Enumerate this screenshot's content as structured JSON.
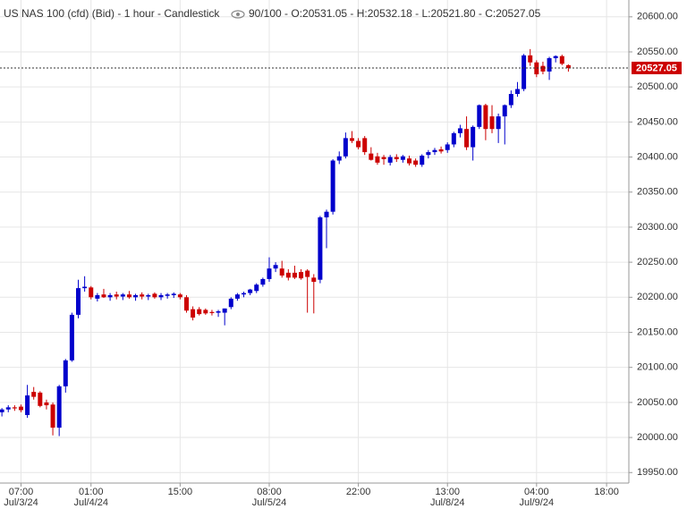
{
  "chart_data": {
    "type": "candlestick",
    "title": "US NAS 100 (cfd) (Bid) - 1 hour - Candlestick",
    "info": "90/100 - O:20531.05 - H:20532.18 - L:20521.80 - C:20527.05",
    "up_color": "#0000cc",
    "down_color": "#cc0000",
    "last_color": "#cc0000",
    "grid": true,
    "x": [
      0,
      1,
      2,
      3,
      4,
      5,
      6,
      7,
      8,
      9,
      10,
      11,
      12,
      13,
      14,
      15,
      16,
      17,
      18,
      19,
      20,
      21,
      22,
      23,
      24,
      25,
      26,
      27,
      28,
      29,
      30,
      31,
      32,
      33,
      34,
      35,
      36,
      37,
      38,
      39,
      40,
      41,
      42,
      43,
      44,
      45,
      46,
      47,
      48,
      49,
      50,
      51,
      52,
      53,
      54,
      55,
      56,
      57,
      58,
      59,
      60,
      61,
      62,
      63,
      64,
      65,
      66,
      67,
      68,
      69,
      70,
      71,
      72,
      73,
      74,
      75,
      76,
      77,
      78,
      79,
      80,
      81,
      82,
      83,
      84,
      85,
      86,
      87,
      88,
      89
    ],
    "open": [
      20036,
      20040,
      20043,
      20044,
      20032,
      20065,
      20064,
      20050,
      20047,
      20014,
      20073,
      20110,
      20175,
      20213,
      20214,
      20198,
      20204,
      20200,
      20204,
      20201,
      20204,
      20200,
      20204,
      20201,
      20205,
      20200,
      20202,
      20203,
      20204,
      20200,
      20183,
      20183,
      20182,
      20179,
      20178,
      20178,
      20186,
      20198,
      20204,
      20206,
      20209,
      20218,
      20226,
      20241,
      20241,
      20235,
      20235,
      20236,
      20238,
      20228,
      20225,
      20314,
      20322,
      20395,
      20401,
      20427,
      20423,
      20427,
      20405,
      20401,
      20400,
      20392,
      20400,
      20396,
      20398,
      20395,
      20389,
      20403,
      20407,
      20411,
      20410,
      20418,
      20434,
      20440,
      20414,
      20443,
      20474,
      20458,
      20440,
      20458,
      20474,
      20490,
      20497,
      20545,
      20535,
      20530,
      20522,
      20541,
      20544,
      20531.05
    ],
    "high": [
      20042,
      20046,
      20046,
      20047,
      20075,
      20072,
      20066,
      20054,
      20050,
      20075,
      20112,
      20178,
      20225,
      20230,
      20216,
      20206,
      20212,
      20206,
      20208,
      20206,
      20209,
      20205,
      20207,
      20205,
      20207,
      20206,
      20206,
      20207,
      20206,
      20203,
      20187,
      20186,
      20184,
      20182,
      20182,
      20184,
      20200,
      20206,
      20208,
      20212,
      20220,
      20228,
      20257,
      20250,
      20252,
      20240,
      20245,
      20240,
      20240,
      20233,
      20316,
      20325,
      20397,
      20408,
      20435,
      20437,
      20427,
      20430,
      20414,
      20406,
      20403,
      20403,
      20404,
      20403,
      20402,
      20398,
      20404,
      20410,
      20413,
      20415,
      20421,
      20436,
      20446,
      20458,
      20445,
      20475,
      20476,
      20474,
      20462,
      20475,
      20495,
      20507,
      20547,
      20554,
      20538,
      20536,
      20543,
      20545,
      20546,
      20532.18
    ],
    "low": [
      20030,
      20036,
      20038,
      20036,
      20028,
      20054,
      20043,
      20040,
      20003,
      20002,
      20064,
      20108,
      20170,
      20208,
      20197,
      20194,
      20199,
      20195,
      20197,
      20196,
      20198,
      20195,
      20197,
      20196,
      20198,
      20196,
      20198,
      20199,
      20197,
      20178,
      20167,
      20174,
      20175,
      20174,
      20172,
      20160,
      20183,
      20195,
      20200,
      20203,
      20206,
      20215,
      20222,
      20236,
      20228,
      20224,
      20226,
      20225,
      20178,
      20177,
      20220,
      20270,
      20318,
      20390,
      20398,
      20420,
      20411,
      20403,
      20395,
      20389,
      20389,
      20388,
      20393,
      20392,
      20388,
      20386,
      20386,
      20398,
      20403,
      20405,
      20406,
      20414,
      20428,
      20410,
      20395,
      20440,
      20424,
      20434,
      20420,
      20418,
      20470,
      20486,
      20494,
      20530,
      20514,
      20518,
      20510,
      20535,
      20531,
      20521.8
    ],
    "close": [
      20040,
      20043,
      20042,
      20039,
      20060,
      20058,
      20045,
      20046,
      20014,
      20073,
      20110,
      20175,
      20213,
      20215,
      20200,
      20203,
      20200,
      20203,
      20201,
      20204,
      20200,
      20203,
      20201,
      20203,
      20200,
      20203,
      20204,
      20205,
      20200,
      20181,
      20171,
      20176,
      20177,
      20178,
      20180,
      20184,
      20198,
      20204,
      20206,
      20211,
      20218,
      20226,
      20241,
      20246,
      20231,
      20228,
      20228,
      20227,
      20229,
      20222,
      20314,
      20322,
      20395,
      20401,
      20427,
      20423,
      20414,
      20407,
      20396,
      20392,
      20397,
      20400,
      20397,
      20401,
      20391,
      20389,
      20402,
      20407,
      20410,
      20408,
      20418,
      20434,
      20441,
      20414,
      20443,
      20474,
      20440,
      20440,
      20458,
      20474,
      20490,
      20497,
      20545,
      20535,
      20518,
      20522,
      20541,
      20544,
      20533,
      20527.05
    ],
    "xlim": [
      -0.3,
      98.5
    ],
    "xticks": [
      {
        "value": 3,
        "label": "07:00"
      },
      {
        "value": 14,
        "label": "01:00"
      },
      {
        "value": 28,
        "label": "15:00"
      },
      {
        "value": 42,
        "label": "08:00"
      },
      {
        "value": 56,
        "label": "22:00"
      },
      {
        "value": 70,
        "label": "13:00"
      },
      {
        "value": 84,
        "label": "04:00"
      },
      {
        "value": 95,
        "label": "18:00"
      }
    ],
    "xtick_dates": [
      "Jul/3/24",
      "Jul/4/24",
      null,
      "Jul/5/24",
      null,
      "Jul/8/24",
      "Jul/9/24",
      null
    ],
    "ylim": [
      19935,
      20624
    ],
    "yticks": [
      {
        "value": 19950,
        "label": "19950.00"
      },
      {
        "value": 20000,
        "label": "20000.00"
      },
      {
        "value": 20050,
        "label": "20050.00"
      },
      {
        "value": 20100,
        "label": "20100.00"
      },
      {
        "value": 20150,
        "label": "20150.00"
      },
      {
        "value": 20200,
        "label": "20200.00"
      },
      {
        "value": 20250,
        "label": "20250.00"
      },
      {
        "value": 20300,
        "label": "20300.00"
      },
      {
        "value": 20350,
        "label": "20350.00"
      },
      {
        "value": 20400,
        "label": "20400.00"
      },
      {
        "value": 20450,
        "label": "20450.00"
      },
      {
        "value": 20500,
        "label": "20500.00"
      },
      {
        "value": 20550,
        "label": "20550.00"
      },
      {
        "value": 20600,
        "label": "20600.00"
      }
    ]
  }
}
